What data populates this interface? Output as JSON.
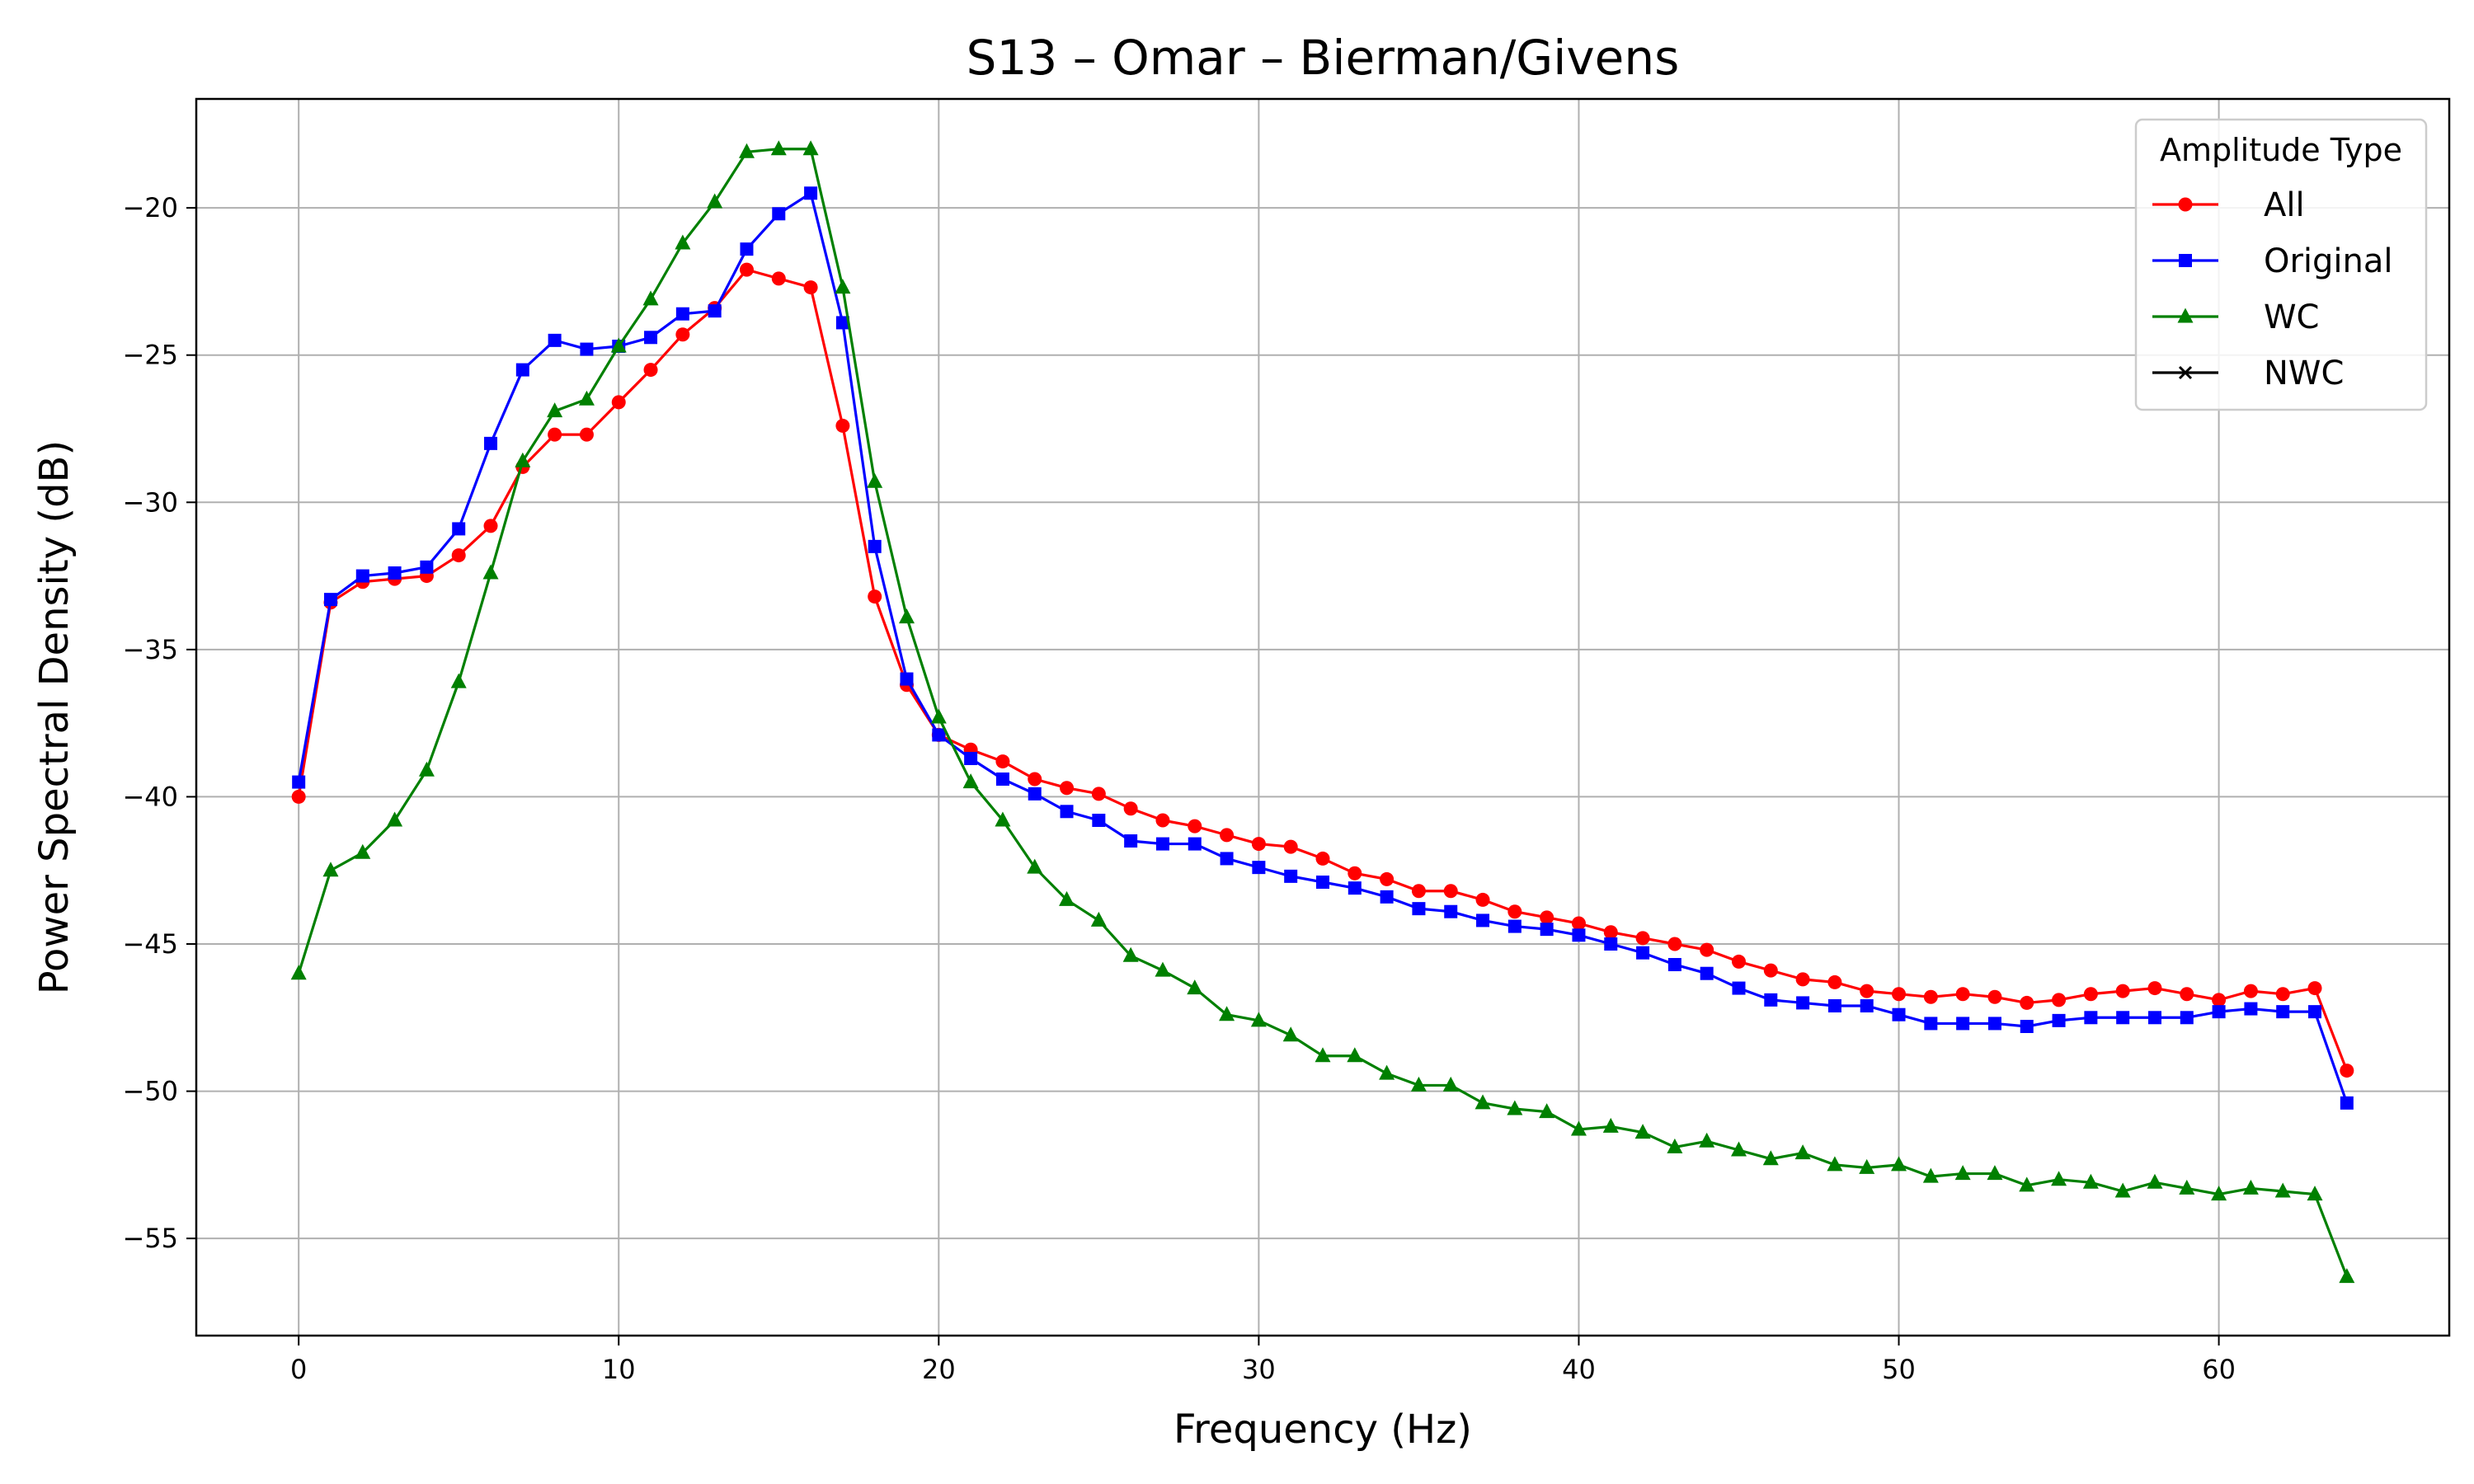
{
  "chart_data": {
    "type": "line",
    "title": "S13 – Omar – Bierman/Givens",
    "xlabel": "Frequency (Hz)",
    "ylabel": "Power Spectral Density (dB)",
    "xlim": [
      -3.2,
      67.2
    ],
    "ylim": [
      -58.3,
      -16.3
    ],
    "xticks": [
      0,
      10,
      20,
      30,
      40,
      50,
      60
    ],
    "yticks": [
      -55,
      -50,
      -45,
      -40,
      -35,
      -30,
      -25,
      -20
    ],
    "grid": true,
    "legend": {
      "title": "Amplitude Type",
      "placement": "top-right"
    },
    "series": [
      {
        "name": "All",
        "color": "#ff0000",
        "marker": "circle",
        "x": [
          0,
          1,
          2,
          3,
          4,
          5,
          6,
          7,
          8,
          9,
          10,
          11,
          12,
          13,
          14,
          15,
          16,
          17,
          18,
          19,
          20,
          21,
          22,
          23,
          24,
          25,
          26,
          27,
          28,
          29,
          30,
          31,
          32,
          33,
          34,
          35,
          36,
          37,
          38,
          39,
          40,
          41,
          42,
          43,
          44,
          45,
          46,
          47,
          48,
          49,
          50,
          51,
          52,
          53,
          54,
          55,
          56,
          57,
          58,
          59,
          60,
          61,
          62,
          63,
          64
        ],
        "values": [
          -40.0,
          -33.4,
          -32.7,
          -32.6,
          -32.5,
          -31.8,
          -30.8,
          -28.8,
          -27.7,
          -27.7,
          -26.6,
          -25.5,
          -24.3,
          -23.4,
          -22.1,
          -22.4,
          -22.7,
          -27.4,
          -33.2,
          -36.2,
          -37.9,
          -38.4,
          -38.8,
          -39.4,
          -39.7,
          -39.9,
          -40.4,
          -40.8,
          -41.0,
          -41.3,
          -41.6,
          -41.7,
          -42.1,
          -42.6,
          -42.8,
          -43.2,
          -43.2,
          -43.5,
          -43.9,
          -44.1,
          -44.3,
          -44.6,
          -44.8,
          -45.0,
          -45.2,
          -45.6,
          -45.9,
          -46.2,
          -46.3,
          -46.6,
          -46.7,
          -46.8,
          -46.7,
          -46.8,
          -47.0,
          -46.9,
          -46.7,
          -46.6,
          -46.5,
          -46.7,
          -46.9,
          -46.6,
          -46.7,
          -46.5,
          -49.3
        ]
      },
      {
        "name": "Original",
        "color": "#0000ff",
        "marker": "square",
        "x": [
          0,
          1,
          2,
          3,
          4,
          5,
          6,
          7,
          8,
          9,
          10,
          11,
          12,
          13,
          14,
          15,
          16,
          17,
          18,
          19,
          20,
          21,
          22,
          23,
          24,
          25,
          26,
          27,
          28,
          29,
          30,
          31,
          32,
          33,
          34,
          35,
          36,
          37,
          38,
          39,
          40,
          41,
          42,
          43,
          44,
          45,
          46,
          47,
          48,
          49,
          50,
          51,
          52,
          53,
          54,
          55,
          56,
          57,
          58,
          59,
          60,
          61,
          62,
          63,
          64
        ],
        "values": [
          -39.5,
          -33.3,
          -32.5,
          -32.4,
          -32.2,
          -30.9,
          -28.0,
          -25.5,
          -24.5,
          -24.8,
          -24.7,
          -24.4,
          -23.6,
          -23.5,
          -21.4,
          -20.2,
          -19.5,
          -23.9,
          -31.5,
          -36.0,
          -37.9,
          -38.7,
          -39.4,
          -39.9,
          -40.5,
          -40.8,
          -41.5,
          -41.6,
          -41.6,
          -42.1,
          -42.4,
          -42.7,
          -42.9,
          -43.1,
          -43.4,
          -43.8,
          -43.9,
          -44.2,
          -44.4,
          -44.5,
          -44.7,
          -45.0,
          -45.3,
          -45.7,
          -46.0,
          -46.5,
          -46.9,
          -47.0,
          -47.1,
          -47.1,
          -47.4,
          -47.7,
          -47.7,
          -47.7,
          -47.8,
          -47.6,
          -47.5,
          -47.5,
          -47.5,
          -47.5,
          -47.3,
          -47.2,
          -47.3,
          -47.3,
          -50.4
        ]
      },
      {
        "name": "WC",
        "color": "#008000",
        "marker": "triangle",
        "x": [
          0,
          1,
          2,
          3,
          4,
          5,
          6,
          7,
          8,
          9,
          10,
          11,
          12,
          13,
          14,
          15,
          16,
          17,
          18,
          19,
          20,
          21,
          22,
          23,
          24,
          25,
          26,
          27,
          28,
          29,
          30,
          31,
          32,
          33,
          34,
          35,
          36,
          37,
          38,
          39,
          40,
          41,
          42,
          43,
          44,
          45,
          46,
          47,
          48,
          49,
          50,
          51,
          52,
          53,
          54,
          55,
          56,
          57,
          58,
          59,
          60,
          61,
          62,
          63,
          64
        ],
        "values": [
          -46.0,
          -42.5,
          -41.9,
          -40.8,
          -39.1,
          -36.1,
          -32.4,
          -28.6,
          -26.9,
          -26.5,
          -24.7,
          -23.1,
          -21.2,
          -19.8,
          -18.1,
          -18.0,
          -18.0,
          -22.7,
          -29.3,
          -33.9,
          -37.3,
          -39.5,
          -40.8,
          -42.4,
          -43.5,
          -44.2,
          -45.4,
          -45.9,
          -46.5,
          -47.4,
          -47.6,
          -48.1,
          -48.8,
          -48.8,
          -49.4,
          -49.8,
          -49.8,
          -50.4,
          -50.6,
          -50.7,
          -51.3,
          -51.2,
          -51.4,
          -51.9,
          -51.7,
          -52.0,
          -52.3,
          -52.1,
          -52.5,
          -52.6,
          -52.5,
          -52.9,
          -52.8,
          -52.8,
          -53.2,
          -53.0,
          -53.1,
          -53.4,
          -53.1,
          -53.3,
          -53.5,
          -53.3,
          -53.4,
          -53.5,
          -56.3
        ]
      },
      {
        "name": "NWC",
        "color": "#000000",
        "marker": "x",
        "x": [],
        "values": []
      }
    ]
  }
}
